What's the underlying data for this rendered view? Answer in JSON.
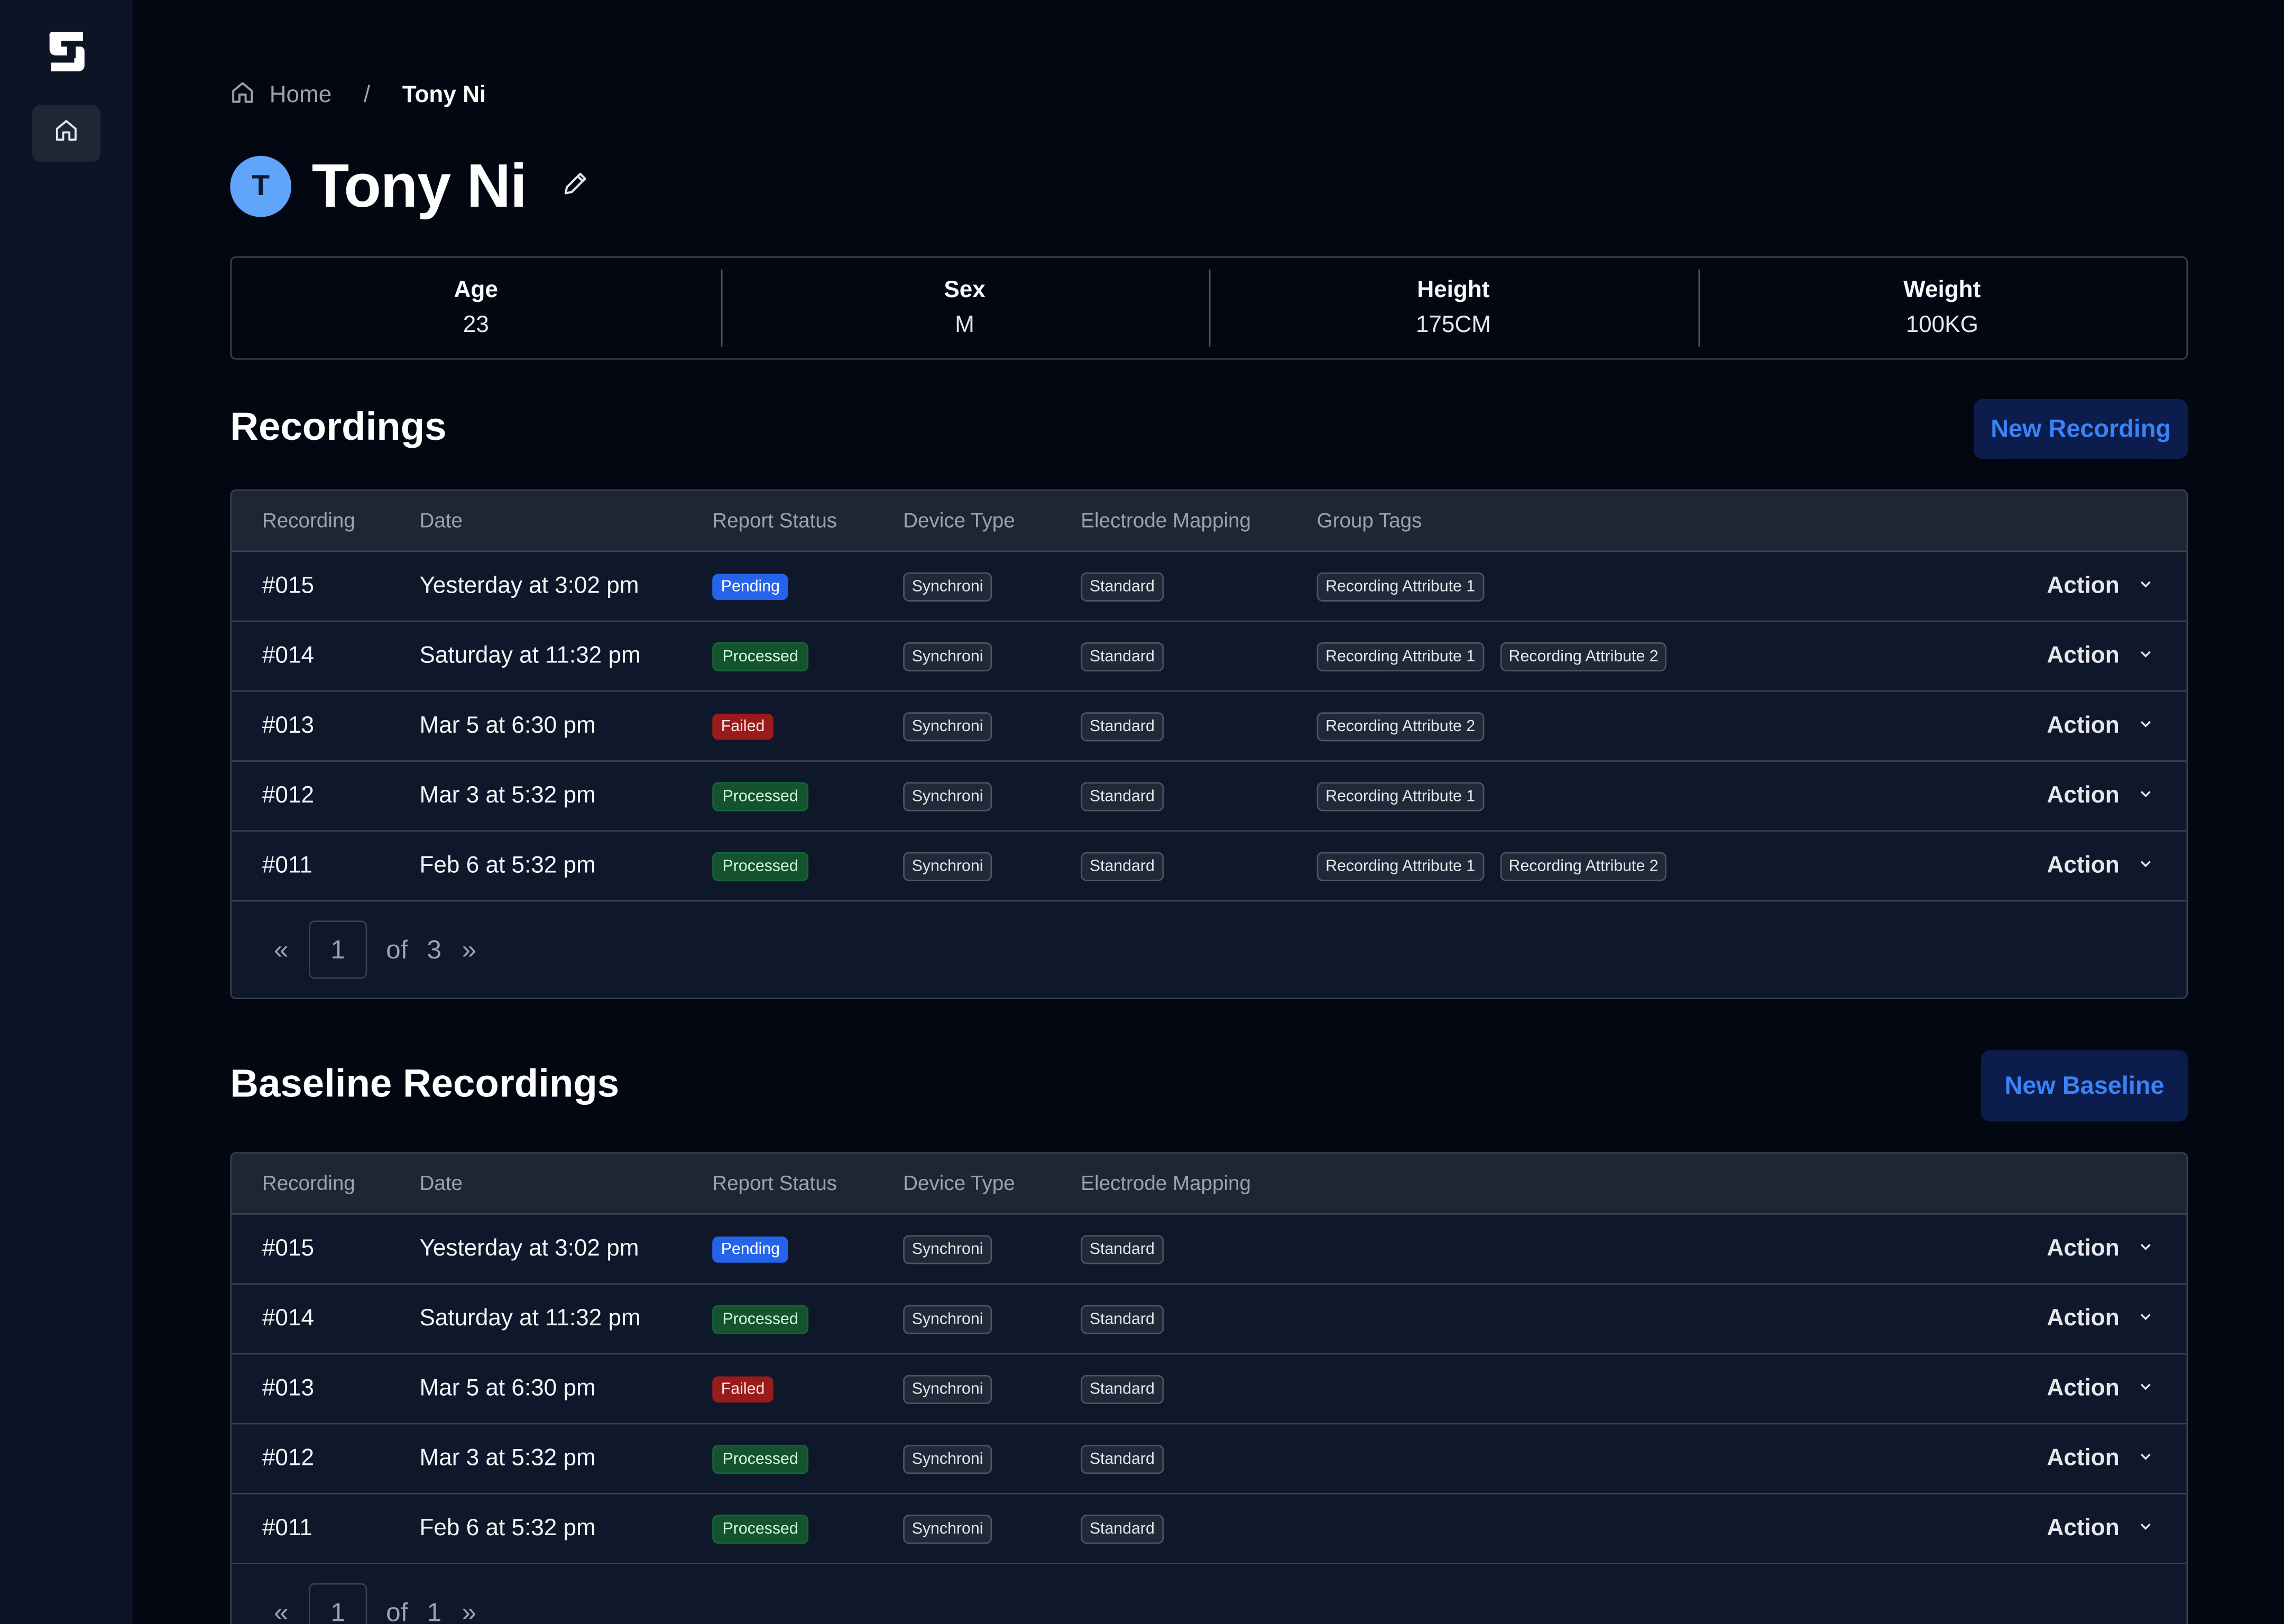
{
  "breadcrumb": {
    "home": "Home",
    "separator": "/",
    "current": "Tony Ni"
  },
  "profile": {
    "initial": "T",
    "name": "Tony Ni",
    "stats": [
      {
        "label": "Age",
        "value": "23"
      },
      {
        "label": "Sex",
        "value": "M"
      },
      {
        "label": "Height",
        "value": "175CM"
      },
      {
        "label": "Weight",
        "value": "100KG"
      }
    ]
  },
  "recordings": {
    "title": "Recordings",
    "new_button": "New Recording",
    "columns": [
      "Recording",
      "Date",
      "Report Status",
      "Device Type",
      "Electrode Mapping",
      "Group Tags"
    ],
    "rows": [
      {
        "id": "#015",
        "date": "Yesterday at 3:02 pm",
        "status": "Pending",
        "status_type": "pending",
        "device": "Synchroni",
        "mapping": "Standard",
        "tags": [
          "Recording Attribute 1"
        ],
        "action": "Action"
      },
      {
        "id": "#014",
        "date": "Saturday at 11:32 pm",
        "status": "Processed",
        "status_type": "processed",
        "device": "Synchroni",
        "mapping": "Standard",
        "tags": [
          "Recording Attribute 1",
          "Recording Attribute 2"
        ],
        "action": "Action"
      },
      {
        "id": "#013",
        "date": "Mar 5 at 6:30 pm",
        "status": "Failed",
        "status_type": "failed",
        "device": "Synchroni",
        "mapping": "Standard",
        "tags": [
          "Recording Attribute 2"
        ],
        "action": "Action"
      },
      {
        "id": "#012",
        "date": "Mar 3 at 5:32 pm",
        "status": "Processed",
        "status_type": "processed",
        "device": "Synchroni",
        "mapping": "Standard",
        "tags": [
          "Recording Attribute 1"
        ],
        "action": "Action"
      },
      {
        "id": "#011",
        "date": "Feb 6 at 5:32 pm",
        "status": "Processed",
        "status_type": "processed",
        "device": "Synchroni",
        "mapping": "Standard",
        "tags": [
          "Recording Attribute 1",
          "Recording Attribute 2"
        ],
        "action": "Action"
      }
    ],
    "pagination": {
      "prev": "«",
      "page": "1",
      "of": "of",
      "total": "3",
      "next": "»"
    }
  },
  "baseline": {
    "title": "Baseline Recordings",
    "new_button": "New Baseline",
    "columns": [
      "Recording",
      "Date",
      "Report Status",
      "Device Type",
      "Electrode Mapping"
    ],
    "rows": [
      {
        "id": "#015",
        "date": "Yesterday at 3:02 pm",
        "status": "Pending",
        "status_type": "pending",
        "device": "Synchroni",
        "mapping": "Standard",
        "action": "Action"
      },
      {
        "id": "#014",
        "date": "Saturday at 11:32 pm",
        "status": "Processed",
        "status_type": "processed",
        "device": "Synchroni",
        "mapping": "Standard",
        "action": "Action"
      },
      {
        "id": "#013",
        "date": "Mar 5 at 6:30 pm",
        "status": "Failed",
        "status_type": "failed",
        "device": "Synchroni",
        "mapping": "Standard",
        "action": "Action"
      },
      {
        "id": "#012",
        "date": "Mar 3 at 5:32 pm",
        "status": "Processed",
        "status_type": "processed",
        "device": "Synchroni",
        "mapping": "Standard",
        "action": "Action"
      },
      {
        "id": "#011",
        "date": "Feb 6 at 5:32 pm",
        "status": "Processed",
        "status_type": "processed",
        "device": "Synchroni",
        "mapping": "Standard",
        "action": "Action"
      }
    ],
    "pagination": {
      "prev": "«",
      "page": "1",
      "of": "of",
      "total": "1",
      "next": "»"
    }
  },
  "colors": {
    "background": "#030712",
    "sidebar": "#0d1426",
    "accent": "#3b82f6",
    "pending": "#2563eb",
    "processed": "#14532d",
    "failed": "#991b1b"
  },
  "icons": {
    "logo": "app-logo",
    "nav_home": "home-icon",
    "edit": "pencil-icon",
    "chevron": "chevron-down-icon"
  }
}
